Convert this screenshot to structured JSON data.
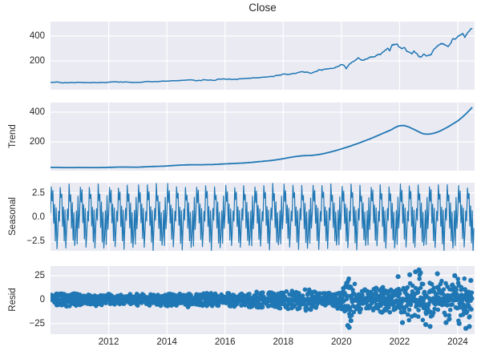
{
  "title": "Close",
  "colors": {
    "series": "#1f77b4",
    "axes_background": "#eaeaf2",
    "gridline": "#ffffff",
    "text": "#262626",
    "figure_background": "#ffffff"
  },
  "x_axis": {
    "lim": [
      2010.0,
      2024.58
    ],
    "ticks": [
      {
        "v": 2012,
        "label": "2012"
      },
      {
        "v": 2014,
        "label": "2014"
      },
      {
        "v": 2016,
        "label": "2016"
      },
      {
        "v": 2018,
        "label": "2018"
      },
      {
        "v": 2020,
        "label": "2020"
      },
      {
        "v": 2022,
        "label": "2022"
      },
      {
        "v": 2024,
        "label": "2024"
      }
    ]
  },
  "chart_data": [
    {
      "type": "line",
      "name": "observed",
      "title": "Close",
      "ylabel": "",
      "ylim": [
        -32,
        516
      ],
      "yticks": [
        {
          "v": 200,
          "label": "200"
        },
        {
          "v": 400,
          "label": "400"
        }
      ],
      "x_start": 2010.0,
      "x_step_years": 0.083333,
      "values": [
        28,
        28,
        29,
        30,
        26,
        23,
        26,
        24,
        25,
        27,
        25,
        28,
        28,
        27,
        25,
        26,
        25,
        26,
        27,
        25,
        26,
        27,
        26,
        26,
        29,
        31,
        32,
        32,
        29,
        31,
        29,
        31,
        29,
        28,
        27,
        27,
        27,
        28,
        29,
        33,
        35,
        34,
        32,
        33,
        33,
        35,
        38,
        37,
        37,
        38,
        41,
        40,
        41,
        42,
        43,
        45,
        46,
        47,
        48,
        46,
        40,
        44,
        41,
        49,
        47,
        44,
        47,
        43,
        44,
        53,
        54,
        55,
        55,
        51,
        55,
        50,
        53,
        51,
        57,
        57,
        58,
        60,
        60,
        62,
        65,
        64,
        66,
        68,
        70,
        69,
        73,
        75,
        74,
        83,
        84,
        86,
        95,
        93,
        91,
        93,
        99,
        99,
        106,
        112,
        114,
        107,
        110,
        101,
        104,
        112,
        118,
        130,
        124,
        134,
        136,
        138,
        139,
        143,
        151,
        158,
        172,
        165,
        137,
        166,
        183,
        196,
        208,
        225,
        210,
        205,
        214,
        222,
        232,
        232,
        236,
        252,
        250,
        271,
        285,
        302,
        282,
        331,
        330,
        336,
        310,
        298,
        308,
        277,
        271,
        257,
        280,
        262,
        233,
        232,
        255,
        240,
        248,
        249,
        288,
        307,
        328,
        340,
        335,
        328,
        315,
        338,
        378,
        376,
        397,
        411,
        421,
        389,
        425,
        447,
        462
      ]
    },
    {
      "type": "line",
      "name": "trend",
      "ylabel": "Trend",
      "ylim": [
        5,
        465
      ],
      "yticks": [
        {
          "v": 200,
          "label": "200"
        },
        {
          "v": 400,
          "label": "400"
        }
      ],
      "x_start": 2010.0,
      "x_step_years": 0.083333,
      "values": [
        27,
        27,
        27,
        27,
        26.5,
        26,
        26,
        26,
        26,
        26,
        26.2,
        26.5,
        26.5,
        26.3,
        26.2,
        26,
        26,
        26,
        26,
        26,
        26.2,
        26.4,
        26.6,
        26.8,
        27.5,
        28,
        28.5,
        29,
        29.3,
        29.5,
        29.5,
        29.4,
        29.2,
        29,
        28.8,
        28.7,
        29,
        29.5,
        30.2,
        31,
        31.8,
        32.5,
        33,
        33.5,
        34,
        34.6,
        35.2,
        36,
        37,
        38,
        39,
        40,
        41,
        42,
        42.8,
        43.5,
        44.2,
        44.7,
        45,
        45,
        44.8,
        44.8,
        45,
        45.3,
        45.6,
        46,
        46.3,
        46.8,
        47.5,
        48.3,
        49.2,
        50.2,
        51,
        51.8,
        52.5,
        53.2,
        54,
        54.8,
        55.6,
        56.5,
        57.5,
        58.7,
        60,
        61.5,
        63,
        64.5,
        66,
        67.5,
        69,
        70.5,
        72.2,
        74,
        76,
        78.2,
        80.6,
        83.2,
        86,
        89,
        92,
        95,
        97.8,
        100.3,
        102.5,
        104.3,
        105.7,
        106.7,
        107.4,
        108,
        109,
        110.5,
        112.5,
        115,
        118,
        121.3,
        125,
        129,
        133.2,
        137.6,
        142.2,
        147,
        152,
        157,
        162,
        167.3,
        172.8,
        178.5,
        184.3,
        190.2,
        196.2,
        202.3,
        208.5,
        214.8,
        221,
        228,
        235,
        242,
        249,
        256,
        263,
        270,
        277,
        285,
        295,
        303,
        308,
        310,
        309,
        305,
        299,
        291,
        283,
        275,
        267,
        259,
        254,
        252,
        252,
        254,
        257,
        262,
        268,
        275,
        283,
        292,
        301,
        311,
        321,
        331,
        341,
        354,
        368,
        383,
        399,
        416,
        433
      ]
    },
    {
      "type": "line",
      "name": "seasonal",
      "ylabel": "Seasonal",
      "ylim": [
        -3.45,
        3.55
      ],
      "yticks": [
        {
          "v": -2.5,
          "label": "−2.5"
        },
        {
          "v": 0,
          "label": "0.0"
        },
        {
          "v": 2.5,
          "label": "2.5"
        }
      ],
      "period_years": 1,
      "points_per_year": 36,
      "template": [
        0.4,
        3.3,
        1.6,
        2.7,
        -0.6,
        1.3,
        -2.3,
        0.9,
        -3.1,
        -1.4,
        0.6,
        -0.4,
        3.2,
        1.9,
        2.5,
        -0.9,
        1.1,
        -2.6,
        0.7,
        -3.3,
        -1.1,
        0.9,
        -0.3,
        3.25,
        1.7,
        2.3,
        -1.1,
        1.5,
        -2.5,
        0.5,
        -3.0,
        -1.9,
        0.7,
        -2.8,
        2.1,
        -1.2
      ]
    },
    {
      "type": "scatter",
      "name": "resid",
      "ylabel": "Resid",
      "ylim": [
        -36,
        35
      ],
      "yticks": [
        {
          "v": -25,
          "label": "−25"
        },
        {
          "v": 0,
          "label": "0"
        },
        {
          "v": 25,
          "label": "25"
        }
      ],
      "x_range": [
        2010.0,
        2024.5
      ],
      "band_halfwidth": [
        [
          2010,
          6
        ],
        [
          2012,
          5.5
        ],
        [
          2014,
          6.5
        ],
        [
          2016,
          6.5
        ],
        [
          2017,
          7
        ],
        [
          2018,
          9
        ],
        [
          2018.8,
          10
        ],
        [
          2019.5,
          8
        ],
        [
          2020.0,
          10
        ],
        [
          2020.15,
          15
        ],
        [
          2020.25,
          26
        ],
        [
          2020.45,
          15
        ],
        [
          2020.8,
          12
        ],
        [
          2021.3,
          11
        ],
        [
          2021.8,
          13
        ],
        [
          2022.1,
          18
        ],
        [
          2022.4,
          20
        ],
        [
          2022.7,
          24
        ],
        [
          2023.0,
          22
        ],
        [
          2023.4,
          18
        ],
        [
          2023.8,
          21
        ],
        [
          2024.1,
          21
        ],
        [
          2024.3,
          24
        ],
        [
          2024.5,
          25
        ]
      ],
      "outliers": [
        {
          "x": 2020.18,
          "y": 17
        },
        {
          "x": 2020.22,
          "y": -27
        },
        {
          "x": 2020.27,
          "y": -29
        },
        {
          "x": 2020.33,
          "y": -22
        },
        {
          "x": 2021.95,
          "y": 24
        },
        {
          "x": 2022.1,
          "y": -24
        },
        {
          "x": 2022.35,
          "y": 26
        },
        {
          "x": 2022.55,
          "y": 29
        },
        {
          "x": 2022.67,
          "y": 31
        },
        {
          "x": 2022.72,
          "y": 28
        },
        {
          "x": 2022.9,
          "y": -26
        },
        {
          "x": 2023.05,
          "y": -28
        },
        {
          "x": 2023.3,
          "y": 27
        },
        {
          "x": 2023.6,
          "y": -24
        },
        {
          "x": 2023.9,
          "y": 25
        },
        {
          "x": 2024.05,
          "y": -25
        },
        {
          "x": 2024.28,
          "y": -30
        },
        {
          "x": 2024.4,
          "y": -28
        },
        {
          "x": 2024.45,
          "y": 20
        }
      ]
    }
  ]
}
